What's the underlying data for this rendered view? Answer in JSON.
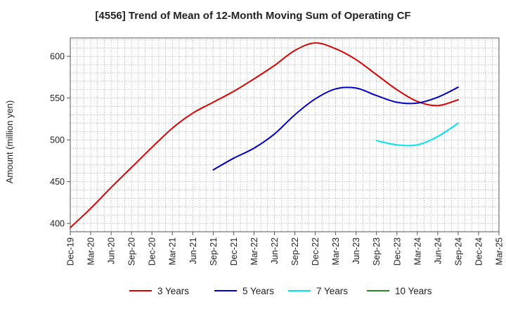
{
  "chart_data": {
    "type": "line",
    "title": "[4556]  Trend of Mean of 12-Month Moving Sum of Operating CF",
    "xlabel": "",
    "ylabel": "Amount (million yen)",
    "ylim": [
      390,
      622
    ],
    "yticks": [
      400,
      450,
      500,
      550,
      600
    ],
    "grid": true,
    "legend_position": "bottom",
    "categories": [
      "Dec-19",
      "Mar-20",
      "Jun-20",
      "Sep-20",
      "Dec-20",
      "Mar-21",
      "Jun-21",
      "Sep-21",
      "Dec-21",
      "Mar-22",
      "Jun-22",
      "Sep-22",
      "Dec-22",
      "Mar-23",
      "Jun-23",
      "Sep-23",
      "Dec-23",
      "Mar-24",
      "Jun-24",
      "Sep-24",
      "Dec-24",
      "Mar-25"
    ],
    "series": [
      {
        "name": "3 Years",
        "color": "#e00000",
        "values": [
          395,
          418,
          443,
          467,
          491,
          514,
          532,
          545,
          558,
          573,
          589,
          607,
          616,
          609,
          596,
          578,
          560,
          546,
          541,
          548,
          null,
          null
        ]
      },
      {
        "name": "5 Years",
        "color": "#0000cc",
        "values": [
          null,
          null,
          null,
          null,
          null,
          null,
          null,
          464,
          478,
          490,
          507,
          530,
          549,
          561,
          562,
          553,
          545,
          544,
          551,
          563,
          null,
          null
        ]
      },
      {
        "name": "7 Years",
        "color": "#00e5ee",
        "values": [
          null,
          null,
          null,
          null,
          null,
          null,
          null,
          null,
          null,
          null,
          null,
          null,
          null,
          null,
          null,
          499,
          494,
          494,
          504,
          520,
          null,
          null
        ]
      },
      {
        "name": "10 Years",
        "color": "#228b22",
        "values": [
          null,
          null,
          null,
          null,
          null,
          null,
          null,
          null,
          null,
          null,
          null,
          null,
          null,
          null,
          null,
          null,
          null,
          null,
          null,
          null,
          null,
          null
        ]
      }
    ]
  }
}
